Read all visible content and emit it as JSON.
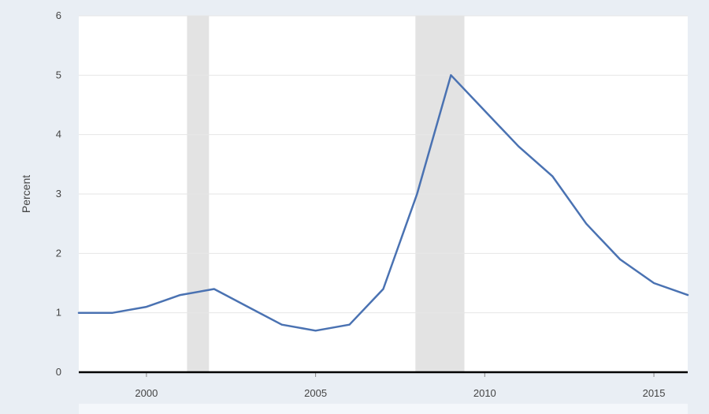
{
  "chart_data": {
    "type": "line",
    "title": "",
    "xlabel": "",
    "ylabel": "Percent",
    "xlim": [
      1998,
      2016
    ],
    "ylim": [
      0,
      6
    ],
    "yticks": [
      0,
      1,
      2,
      3,
      4,
      5,
      6
    ],
    "xticks": [
      2000,
      2005,
      2010,
      2015
    ],
    "grid": true,
    "legend": "none",
    "recession_bands": [
      {
        "start": 2001.2,
        "end": 2001.85
      },
      {
        "start": 2007.95,
        "end": 2009.4
      }
    ],
    "series": [
      {
        "color": "#4a72b2",
        "x": [
          1998,
          1999,
          2000,
          2001,
          2002,
          2003,
          2004,
          2005,
          2006,
          2007,
          2008,
          2009,
          2010,
          2011,
          2012,
          2013,
          2014,
          2015,
          2016
        ],
        "y": [
          1.0,
          1.0,
          1.1,
          1.3,
          1.4,
          1.1,
          0.8,
          0.7,
          0.8,
          1.4,
          3.0,
          5.0,
          4.4,
          3.8,
          3.3,
          2.5,
          1.9,
          1.5,
          1.3
        ]
      }
    ],
    "colors": {
      "line": "#4a72b2",
      "plot_bg": "#ffffff",
      "grid": "#e6e6e6",
      "band": "#e3e3e3",
      "axis": "#000000"
    }
  }
}
